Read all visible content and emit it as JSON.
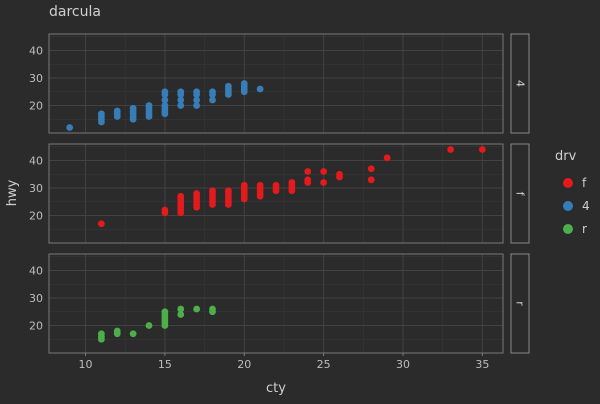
{
  "chart_data": {
    "type": "scatter",
    "title": "darcula",
    "xlabel": "cty",
    "ylabel": "hwy",
    "xlim": [
      7.7,
      36.3
    ],
    "ylim": [
      10,
      46
    ],
    "x_ticks": [
      10,
      15,
      20,
      25,
      30,
      35
    ],
    "y_ticks": [
      20,
      30,
      40
    ],
    "grid": true,
    "legend": {
      "title": "drv",
      "placement": "right",
      "entries": [
        {
          "label": "f",
          "color": "#e41a1c"
        },
        {
          "label": "4",
          "color": "#377eb8"
        },
        {
          "label": "r",
          "color": "#4daf4a"
        }
      ]
    },
    "facets": [
      {
        "label": "4",
        "color": "#377eb8",
        "points": [
          [
            9,
            12
          ],
          [
            11,
            14
          ],
          [
            11,
            15
          ],
          [
            11,
            16
          ],
          [
            11,
            17
          ],
          [
            12,
            16
          ],
          [
            12,
            17
          ],
          [
            12,
            18
          ],
          [
            13,
            15
          ],
          [
            13,
            16
          ],
          [
            13,
            17
          ],
          [
            13,
            18
          ],
          [
            13,
            19
          ],
          [
            14,
            16
          ],
          [
            14,
            17
          ],
          [
            14,
            18
          ],
          [
            14,
            19
          ],
          [
            14,
            20
          ],
          [
            15,
            17
          ],
          [
            15,
            18
          ],
          [
            15,
            19
          ],
          [
            15,
            20
          ],
          [
            15,
            22
          ],
          [
            15,
            24
          ],
          [
            15,
            25
          ],
          [
            16,
            20
          ],
          [
            16,
            22
          ],
          [
            16,
            24
          ],
          [
            16,
            25
          ],
          [
            17,
            20
          ],
          [
            17,
            22
          ],
          [
            17,
            24
          ],
          [
            17,
            25
          ],
          [
            18,
            22
          ],
          [
            18,
            24
          ],
          [
            18,
            25
          ],
          [
            19,
            24
          ],
          [
            19,
            25
          ],
          [
            19,
            26
          ],
          [
            19,
            27
          ],
          [
            20,
            25
          ],
          [
            20,
            26
          ],
          [
            20,
            27
          ],
          [
            20,
            28
          ],
          [
            21,
            26
          ]
        ]
      },
      {
        "label": "f",
        "color": "#e41a1c",
        "points": [
          [
            11,
            17
          ],
          [
            15,
            21
          ],
          [
            15,
            22
          ],
          [
            16,
            21
          ],
          [
            16,
            22
          ],
          [
            16,
            23
          ],
          [
            16,
            24
          ],
          [
            16,
            25
          ],
          [
            16,
            26
          ],
          [
            16,
            27
          ],
          [
            17,
            23
          ],
          [
            17,
            24
          ],
          [
            17,
            25
          ],
          [
            17,
            26
          ],
          [
            17,
            27
          ],
          [
            17,
            28
          ],
          [
            18,
            24
          ],
          [
            18,
            25
          ],
          [
            18,
            26
          ],
          [
            18,
            27
          ],
          [
            18,
            28
          ],
          [
            18,
            29
          ],
          [
            19,
            24
          ],
          [
            19,
            25
          ],
          [
            19,
            26
          ],
          [
            19,
            27
          ],
          [
            19,
            28
          ],
          [
            19,
            29
          ],
          [
            20,
            26
          ],
          [
            20,
            27
          ],
          [
            20,
            28
          ],
          [
            20,
            29
          ],
          [
            20,
            30
          ],
          [
            20,
            31
          ],
          [
            21,
            27
          ],
          [
            21,
            28
          ],
          [
            21,
            29
          ],
          [
            21,
            30
          ],
          [
            21,
            31
          ],
          [
            22,
            29
          ],
          [
            22,
            30
          ],
          [
            22,
            31
          ],
          [
            23,
            29
          ],
          [
            23,
            30
          ],
          [
            23,
            31
          ],
          [
            23,
            32
          ],
          [
            24,
            32
          ],
          [
            24,
            33
          ],
          [
            24,
            36
          ],
          [
            25,
            32
          ],
          [
            25,
            36
          ],
          [
            26,
            34
          ],
          [
            26,
            35
          ],
          [
            28,
            33
          ],
          [
            28,
            37
          ],
          [
            29,
            41
          ],
          [
            33,
            44
          ],
          [
            35,
            44
          ]
        ]
      },
      {
        "label": "r",
        "color": "#4daf4a",
        "points": [
          [
            11,
            15
          ],
          [
            11,
            16
          ],
          [
            11,
            17
          ],
          [
            12,
            17
          ],
          [
            12,
            18
          ],
          [
            13,
            17
          ],
          [
            14,
            20
          ],
          [
            15,
            20
          ],
          [
            15,
            21
          ],
          [
            15,
            22
          ],
          [
            15,
            23
          ],
          [
            15,
            24
          ],
          [
            15,
            25
          ],
          [
            16,
            24
          ],
          [
            16,
            26
          ],
          [
            17,
            26
          ],
          [
            18,
            25
          ],
          [
            18,
            26
          ]
        ]
      }
    ]
  }
}
